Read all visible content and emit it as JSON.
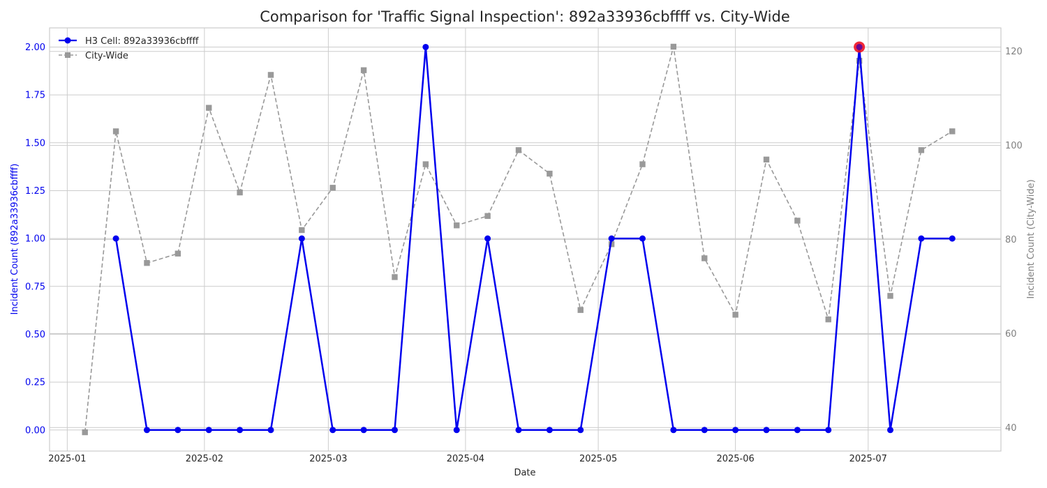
{
  "chart_data": {
    "type": "line",
    "title": "Comparison for 'Traffic Signal Inspection': 892a33936cbffff vs. City-Wide",
    "xlabel": "Date",
    "ylabel_left": "Incident Count (892a33936cbffff)",
    "ylabel_right": "Incident Count (City-Wide)",
    "x_ticks": [
      "2025-01",
      "2025-02",
      "2025-03",
      "2025-04",
      "2025-05",
      "2025-06",
      "2025-07"
    ],
    "y_left_ticks": [
      "0.00",
      "0.25",
      "0.50",
      "0.75",
      "1.00",
      "1.25",
      "1.50",
      "1.75",
      "2.00"
    ],
    "y_right_ticks": [
      "40",
      "60",
      "80",
      "100",
      "120"
    ],
    "xlim": [
      "2024-12-28",
      "2025-07-31"
    ],
    "ylim_left": [
      -0.11,
      2.1
    ],
    "ylim_right": [
      35,
      125
    ],
    "grid": true,
    "legend_position": "top-left",
    "series": [
      {
        "name": "H3 Cell: 892a33936cbffff",
        "axis": "left",
        "color": "#0000ee",
        "marker": "circle",
        "x": [
          "2025-01-12",
          "2025-01-19",
          "2025-01-26",
          "2025-02-02",
          "2025-02-09",
          "2025-02-16",
          "2025-02-23",
          "2025-03-02",
          "2025-03-09",
          "2025-03-16",
          "2025-03-23",
          "2025-03-30",
          "2025-04-06",
          "2025-04-13",
          "2025-04-20",
          "2025-04-27",
          "2025-05-04",
          "2025-05-11",
          "2025-05-18",
          "2025-05-25",
          "2025-06-01",
          "2025-06-08",
          "2025-06-15",
          "2025-06-22",
          "2025-06-29",
          "2025-07-06",
          "2025-07-13",
          "2025-07-20"
        ],
        "values": [
          1,
          0,
          0,
          0,
          0,
          0,
          1,
          0,
          0,
          0,
          2,
          0,
          1,
          0,
          0,
          0,
          1,
          1,
          0,
          0,
          0,
          0,
          0,
          0,
          2,
          0,
          1,
          1
        ]
      },
      {
        "name": "City-Wide",
        "axis": "right",
        "color": "#999999",
        "marker": "square",
        "x": [
          "2025-01-05",
          "2025-01-12",
          "2025-01-19",
          "2025-01-26",
          "2025-02-02",
          "2025-02-09",
          "2025-02-16",
          "2025-02-23",
          "2025-03-02",
          "2025-03-09",
          "2025-03-16",
          "2025-03-23",
          "2025-03-30",
          "2025-04-06",
          "2025-04-13",
          "2025-04-20",
          "2025-04-27",
          "2025-05-04",
          "2025-05-11",
          "2025-05-18",
          "2025-05-25",
          "2025-06-01",
          "2025-06-08",
          "2025-06-15",
          "2025-06-22",
          "2025-06-29",
          "2025-07-06",
          "2025-07-13",
          "2025-07-20"
        ],
        "values": [
          39,
          103,
          75,
          77,
          108,
          90,
          115,
          82,
          91,
          116,
          72,
          96,
          83,
          85,
          99,
          94,
          65,
          79,
          96,
          121,
          76,
          64,
          97,
          84,
          63,
          118,
          68,
          99,
          103
        ]
      }
    ],
    "highlight": {
      "x": "2025-06-29",
      "value": 2,
      "color": "#ee1122"
    }
  }
}
